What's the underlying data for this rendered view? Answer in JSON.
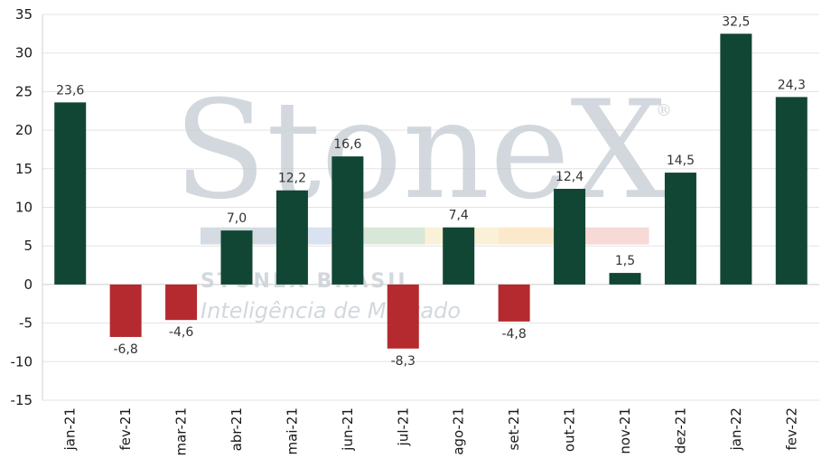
{
  "watermark": {
    "brand": "StoneX",
    "registered": "®",
    "subtitle": "STONEX BRASIL",
    "tagline": "Inteligência de Mercado",
    "band_colors": [
      "#9fb0bf",
      "#a9c2dc",
      "#a6c9a8",
      "#f2e3a8",
      "#f6cf8f",
      "#eeaaa6"
    ]
  },
  "colors": {
    "positive": "#114634",
    "negative": "#b52a2e",
    "grid": "#e3e3e3"
  },
  "chart_data": {
    "type": "bar",
    "title": "",
    "xlabel": "",
    "ylabel": "",
    "categories": [
      "jan-21",
      "fev-21",
      "mar-21",
      "abr-21",
      "mai-21",
      "jun-21",
      "jul-21",
      "ago-21",
      "set-21",
      "out-21",
      "nov-21",
      "dez-21",
      "jan-22",
      "fev-22"
    ],
    "values": [
      23.6,
      -6.8,
      -4.6,
      7.0,
      12.2,
      16.6,
      -8.3,
      7.4,
      -4.8,
      12.4,
      1.5,
      14.5,
      32.5,
      24.3
    ],
    "data_labels": [
      "23,6",
      "-6,8",
      "-4,6",
      "7,0",
      "12,2",
      "16,6",
      "-8,3",
      "7,4",
      "-4,8",
      "12,4",
      "1,5",
      "14,5",
      "32,5",
      "24,3"
    ],
    "ylim": [
      -15,
      35
    ],
    "yticks": [
      35,
      30,
      25,
      20,
      15,
      10,
      5,
      0,
      -5,
      -10,
      -15
    ],
    "ytick_labels": [
      "35",
      "30",
      "25",
      "20",
      "15",
      "10",
      "5",
      "0",
      "-5",
      "-10",
      "-15"
    ],
    "grid": true,
    "legend": "none"
  }
}
